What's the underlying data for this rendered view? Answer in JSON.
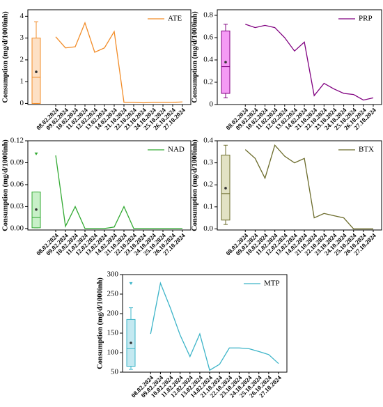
{
  "chart_data": [
    {
      "type": "line",
      "y_label": "Consumption (mg/d/1000inh)",
      "categories": [
        "08.02.2024",
        "09.02.2024",
        "10.02.2024",
        "11.02.2024",
        "12.02.2024",
        "13.02.2024",
        "14.02.2024",
        "21.10.2024",
        "22.10.2024",
        "23.10.2024",
        "24.10.2024",
        "25.10.2024",
        "26.10.2024",
        "27.10.2024"
      ],
      "series": [
        {
          "name": "ATE",
          "color": "#f28c28",
          "values": [
            3.06,
            2.55,
            2.6,
            3.7,
            2.35,
            2.55,
            3.3,
            0.05,
            0.05,
            0.03,
            0.05,
            0.05,
            0.05,
            0.07
          ]
        }
      ],
      "box": {
        "min": 0,
        "q1": 0,
        "median": 1.2,
        "q3": 3.0,
        "max": 3.75,
        "mean": 1.45,
        "fill": "#fde0c5"
      },
      "ylim": [
        -0.05,
        4.3
      ],
      "yticks": [
        0,
        1,
        2,
        3,
        4
      ]
    },
    {
      "type": "line",
      "y_label": "Consumption (mg/d/1000inh)",
      "categories": [
        "08.02.2024",
        "09.02.2024",
        "10.02.2024",
        "11.02.2024",
        "12.02.2024",
        "13.02.2024",
        "14.02.2024",
        "21.10.2024",
        "22.10.2024",
        "23.10.2024",
        "24.10.2024",
        "25.10.2024",
        "26.10.2024",
        "27.10.2024"
      ],
      "series": [
        {
          "name": "PRP",
          "color": "#800080",
          "values": [
            0.72,
            0.69,
            0.71,
            0.69,
            0.6,
            0.48,
            0.56,
            0.08,
            0.19,
            0.14,
            0.1,
            0.09,
            0.04,
            0.06
          ]
        }
      ],
      "box": {
        "min": 0.06,
        "q1": 0.1,
        "median": 0.34,
        "q3": 0.66,
        "max": 0.72,
        "mean": 0.38,
        "fill": "#f59af5"
      },
      "ylim": [
        0,
        0.85
      ],
      "yticks": [
        0,
        0.2,
        0.4,
        0.6,
        0.8
      ]
    },
    {
      "type": "line",
      "y_label": "Consumption (mg/d/1000inh)",
      "categories": [
        "08.02.2024",
        "09.02.2024",
        "10.02.2024",
        "11.02.2024",
        "12.02.2024",
        "13.02.2024",
        "14.02.2024",
        "21.10.2024",
        "22.10.2024",
        "23.10.2024",
        "24.10.2024",
        "25.10.2024",
        "26.10.2024",
        "27.10.2024"
      ],
      "series": [
        {
          "name": "NAD",
          "color": "#33aa33",
          "values": [
            0.1,
            0.003,
            0.03,
            0,
            0,
            0,
            0.002,
            0.03,
            0,
            0,
            0,
            0,
            0,
            0
          ]
        }
      ],
      "box": {
        "min": 0.001,
        "q1": 0.001,
        "median": 0.015,
        "q3": 0.05,
        "max": 0.05,
        "mean": 0.026,
        "outliers": [
          0.102
        ],
        "fill": "#c8f0c8"
      },
      "ylim": [
        -0.002,
        0.12
      ],
      "yticks": [
        {
          "value": 0,
          "label": "0.00"
        },
        0.03,
        0.06,
        0.09,
        0.12
      ]
    },
    {
      "type": "line",
      "y_label": "Consumption (mg/d/1000inh)",
      "categories": [
        "08.02.2024",
        "09.02.2024",
        "10.02.2024",
        "11.02.2024",
        "12.02.2024",
        "13.02.2024",
        "14.02.2024",
        "21.10.2024",
        "22.10.2024",
        "23.10.2024",
        "24.10.2024",
        "25.10.2024",
        "26.10.2024",
        "27.10.2024"
      ],
      "series": [
        {
          "name": "BTX",
          "color": "#6b6b2a",
          "values": [
            0.36,
            0.32,
            0.23,
            0.38,
            0.33,
            0.3,
            0.32,
            0.05,
            0.07,
            0.06,
            0.05,
            0,
            0,
            0
          ]
        }
      ],
      "box": {
        "min": 0.02,
        "q1": 0.04,
        "median": 0.16,
        "q3": 0.335,
        "max": 0.38,
        "mean": 0.185,
        "fill": "#e2e2c4"
      },
      "ylim": [
        -0.005,
        0.4
      ],
      "yticks": [
        {
          "value": 0,
          "label": "0.0"
        },
        0.1,
        0.2,
        0.3,
        0.4
      ]
    },
    {
      "type": "line",
      "y_label": "Consumption (mg/d/1000inh)",
      "categories": [
        "08.02.2024",
        "09.02.2024",
        "10.02.2024",
        "11.02.2024",
        "12.02.2024",
        "13.02.2024",
        "14.02.2024",
        "21.10.2024",
        "22.10.2024",
        "23.10.2024",
        "24.10.2024",
        "25.10.2024",
        "26.10.2024",
        "27.10.2024"
      ],
      "series": [
        {
          "name": "MTP",
          "color": "#3cb4c8",
          "values": [
            148,
            278,
            215,
            145,
            90,
            148,
            55,
            70,
            112,
            112,
            110,
            103,
            95,
            72
          ]
        }
      ],
      "box": {
        "min": 57,
        "q1": 65,
        "median": 110,
        "q3": 185,
        "max": 215,
        "mean": 125,
        "outliers": [
          277
        ],
        "fill": "#c4e9f1"
      },
      "ylim": [
        50,
        300
      ],
      "yticks": [
        50,
        100,
        150,
        200,
        250,
        300
      ]
    }
  ]
}
